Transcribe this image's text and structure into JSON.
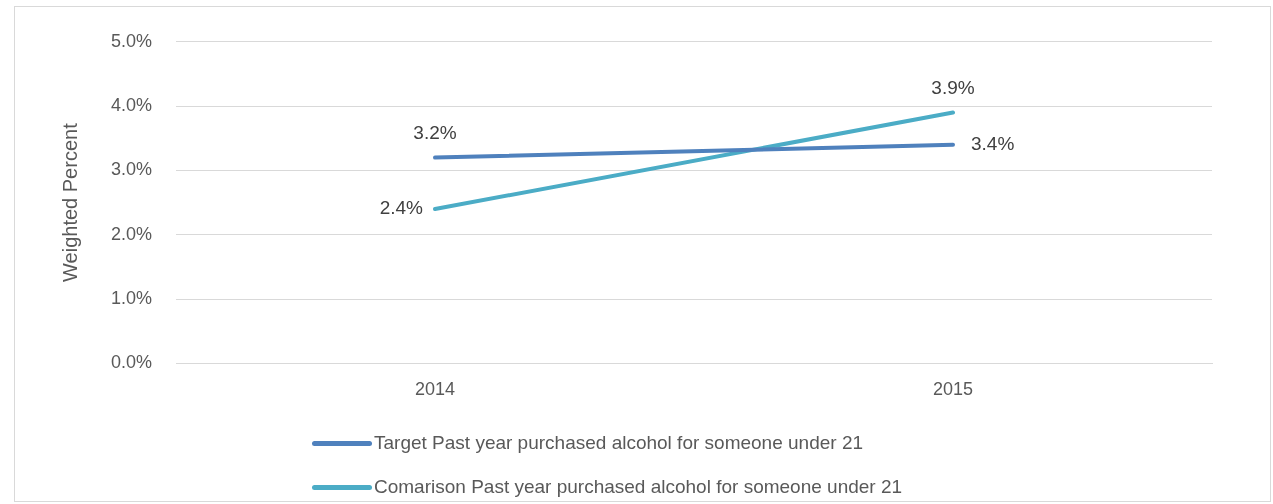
{
  "chart_data": {
    "type": "line",
    "ylabel": "Weighted Percent",
    "categories": [
      "2014",
      "2015"
    ],
    "series": [
      {
        "name": "Target Past year purchased alcohol for someone under 21",
        "color": "#4f81bd",
        "values": [
          3.2,
          3.4
        ],
        "value_labels": [
          "3.2%",
          "3.4%"
        ]
      },
      {
        "name": "Comarison Past year purchased alcohol for someone under 21",
        "color": "#4bacc6",
        "values": [
          2.4,
          3.9
        ],
        "value_labels": [
          "2.4%",
          "3.9%"
        ]
      }
    ],
    "ylim": [
      0,
      5
    ],
    "yticks": [
      {
        "value": 0,
        "label": "0.0%"
      },
      {
        "value": 1,
        "label": "1.0%"
      },
      {
        "value": 2,
        "label": "2.0%"
      },
      {
        "value": 3,
        "label": "3.0%"
      },
      {
        "value": 4,
        "label": "4.0%"
      },
      {
        "value": 5,
        "label": "5.0%"
      }
    ],
    "grid": "y",
    "legend": "bottom",
    "marker": "none",
    "line_style": "solid"
  }
}
